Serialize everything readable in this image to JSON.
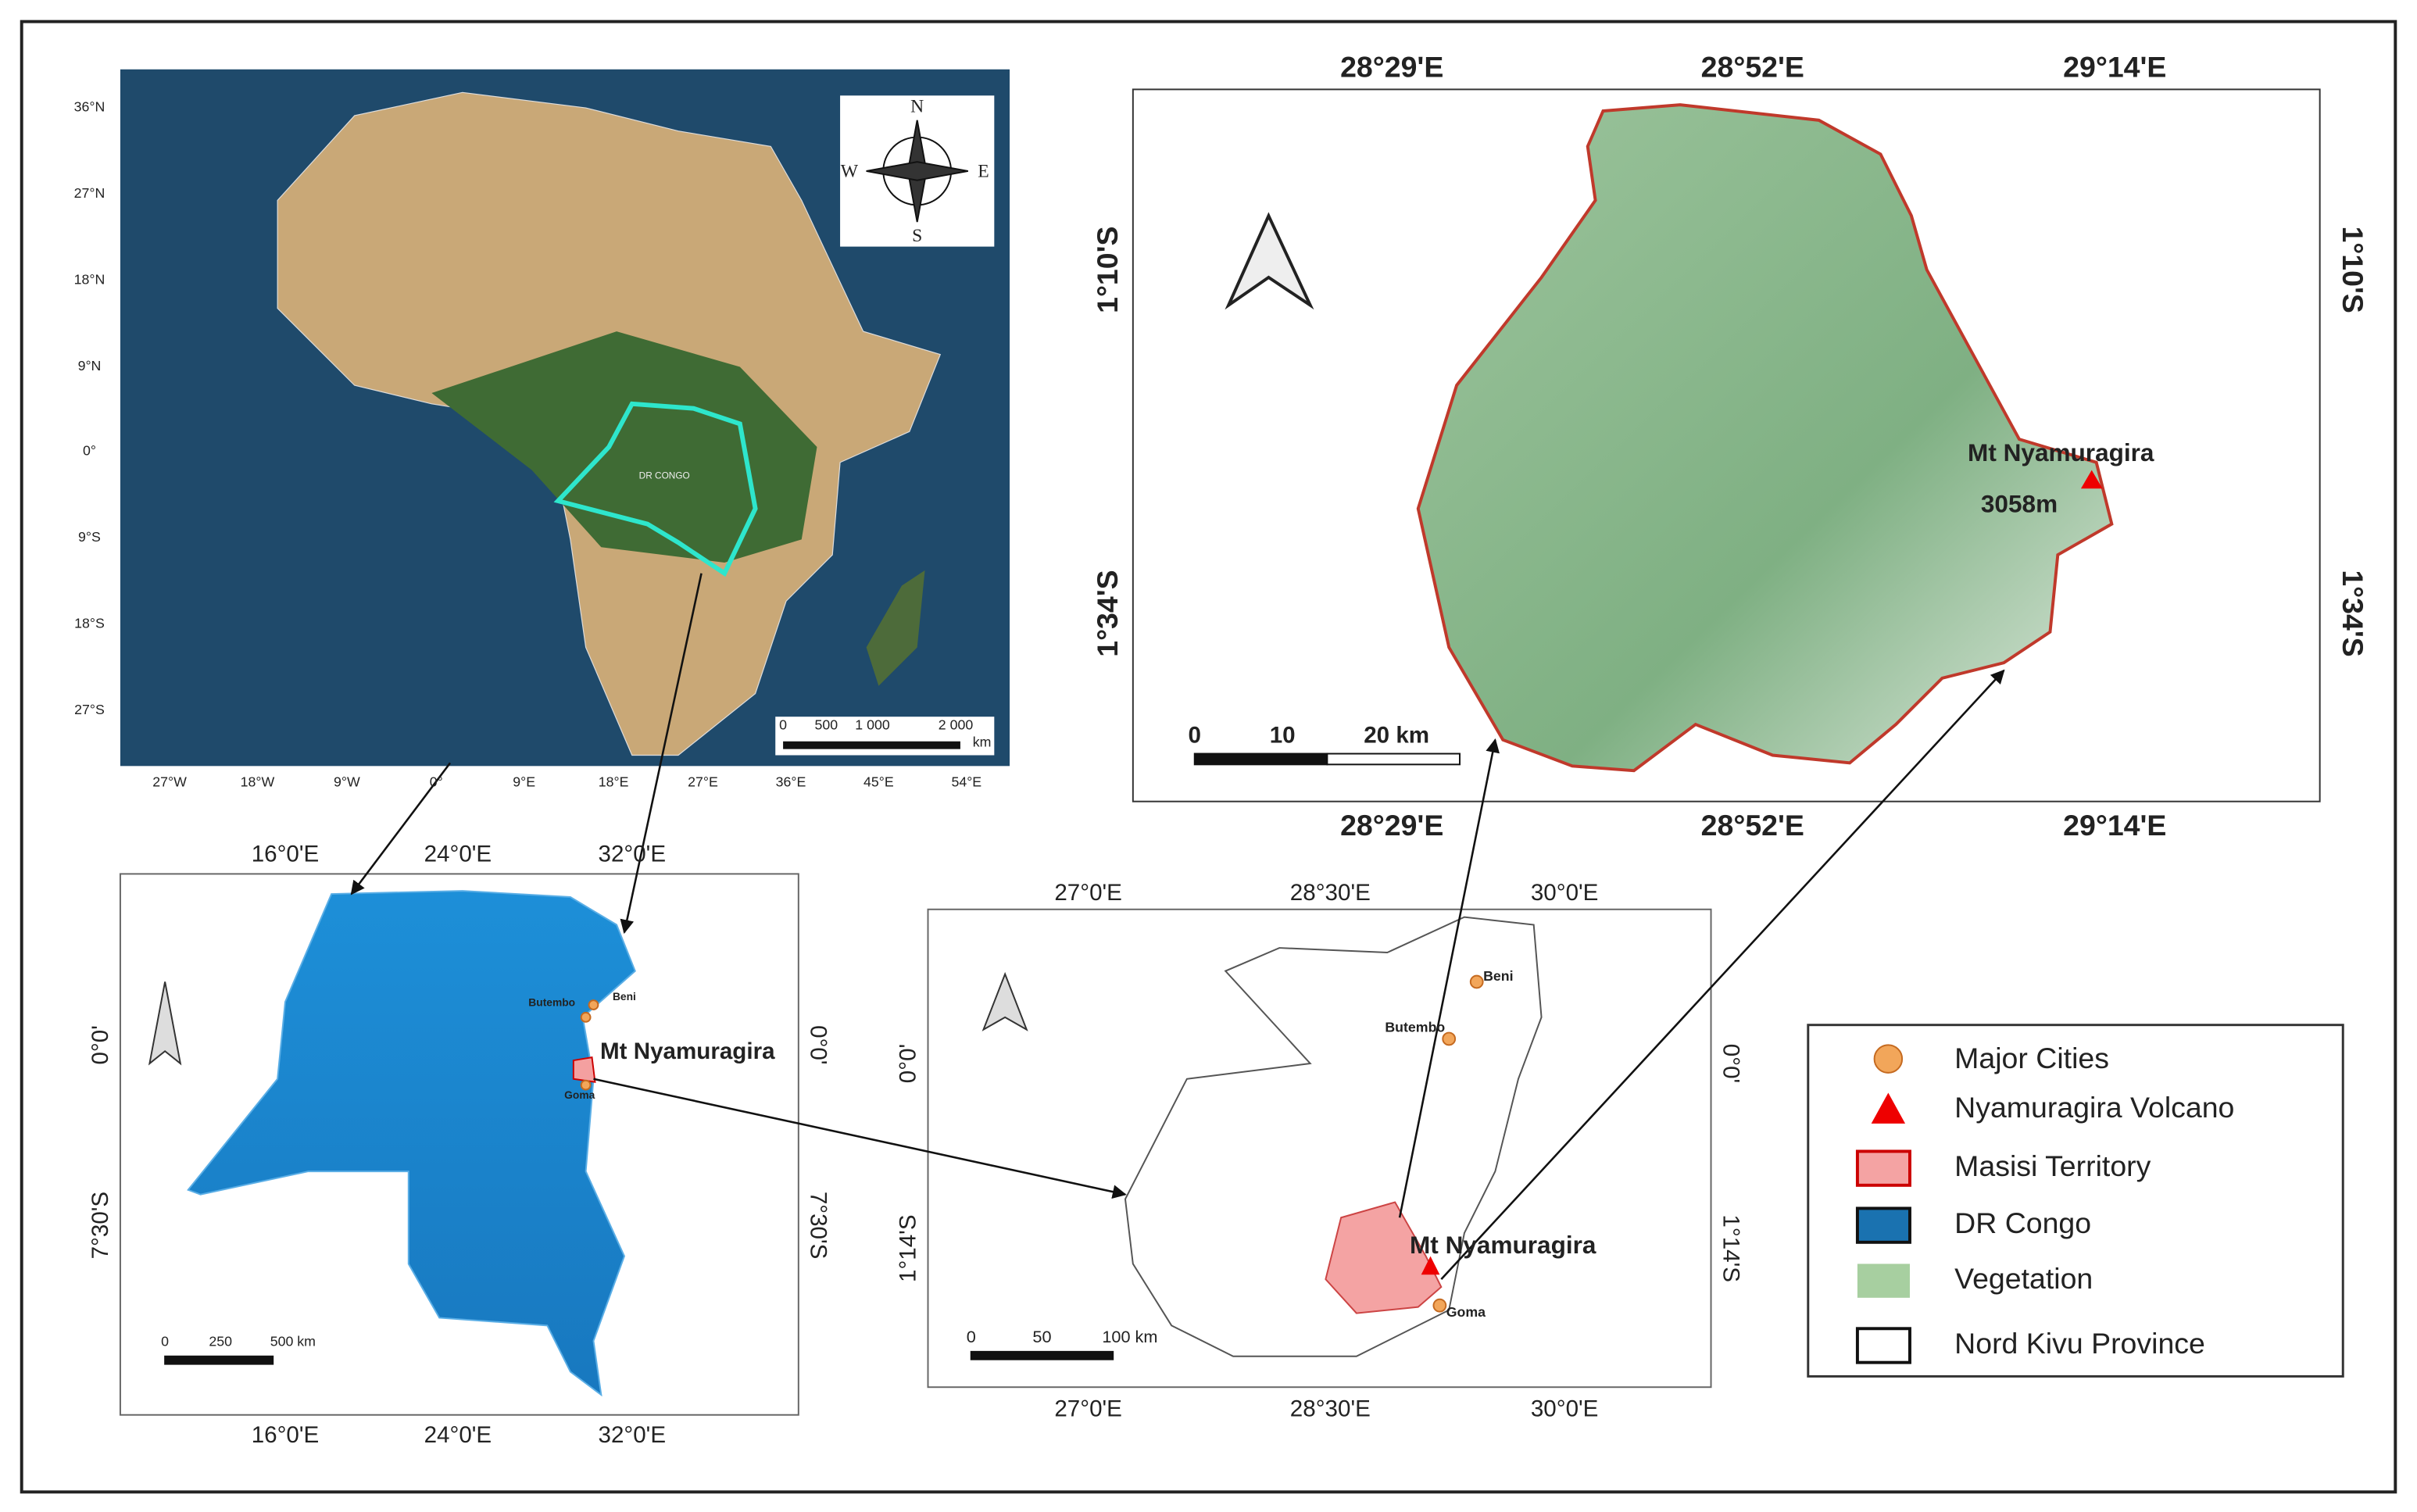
{
  "africa_map": {
    "lat_labels": [
      "36°N",
      "27°N",
      "18°N",
      "9°N",
      "0°",
      "9°S",
      "18°S",
      "27°S"
    ],
    "lon_labels": [
      "27°W",
      "18°W",
      "9°W",
      "0°",
      "9°E",
      "18°E",
      "27°E",
      "36°E",
      "45°E",
      "54°E"
    ],
    "country_label": "DR CONGO",
    "compass": [
      "N",
      "E",
      "S",
      "W"
    ],
    "scale_labels": [
      "0",
      "500",
      "1 000",
      "2 000",
      "km"
    ]
  },
  "drc_map": {
    "lon_labels": [
      "16°0'E",
      "24°0'E",
      "32°0'E"
    ],
    "lat_labels": [
      "0°0'",
      "7°30'S"
    ],
    "cities": [
      "Butembo",
      "Beni",
      "Goma"
    ],
    "volcano_label": "Mt Nyamuragira",
    "scale_labels": [
      "0",
      "250",
      "500 km"
    ]
  },
  "kivu_map": {
    "lon_labels": [
      "27°0'E",
      "28°30'E",
      "30°0'E"
    ],
    "lat_labels": [
      "0°0'",
      "1°14'S"
    ],
    "cities": [
      "Beni",
      "Butembo",
      "Goma"
    ],
    "volcano_label": "Mt Nyamuragira",
    "scale_labels": [
      "0",
      "50",
      "100 km"
    ]
  },
  "masisi_map": {
    "lon_labels": [
      "28°29'E",
      "28°52'E",
      "29°14'E"
    ],
    "lat_labels": [
      "1°10'S",
      "1°34'S"
    ],
    "volcano_label": "Mt Nyamuragira",
    "elevation": "3058m",
    "scale_labels": [
      "0",
      "10",
      "20 km"
    ]
  },
  "legend": [
    "Major Cities",
    "Nyamuragira Volcano",
    "Masisi Territory",
    "DR Congo",
    "Vegetation",
    "Nord Kivu Province"
  ]
}
